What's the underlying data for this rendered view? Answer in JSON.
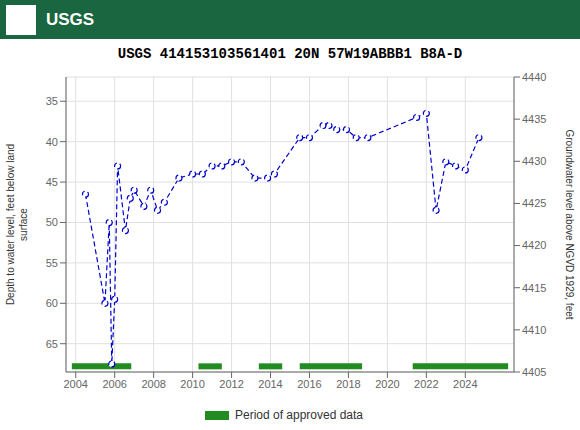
{
  "chart_data": {
    "type": "line",
    "title": "USGS 414153103561401 20N 57W19ABBB1 B8A-D",
    "annotations": [
      {
        "text": "USGS",
        "color": "#1a6640"
      }
    ],
    "x": [
      2004.5,
      2005.5,
      2005.72,
      2005.85,
      2006.0,
      2006.15,
      2006.55,
      2006.8,
      2007.0,
      2007.5,
      2007.85,
      2008.2,
      2008.55,
      2009.3,
      2010.0,
      2010.5,
      2011.0,
      2011.5,
      2012.0,
      2012.5,
      2013.2,
      2013.85,
      2014.2,
      2015.5,
      2016.0,
      2016.7,
      2017.0,
      2017.4,
      2017.9,
      2018.4,
      2019.0,
      2021.5,
      2022.0,
      2022.5,
      2023.0,
      2023.5,
      2024.0,
      2024.7
    ],
    "series": [
      {
        "values": [
          46.5,
          60.0,
          50.0,
          67.5,
          59.5,
          43.0,
          51.0,
          47.0,
          46.0,
          48.0,
          46.0,
          48.5,
          47.5,
          44.5,
          44.0,
          44.0,
          43.0,
          43.0,
          42.5,
          42.5,
          44.5,
          44.5,
          44.0,
          39.5,
          39.5,
          38.0,
          38.0,
          38.5,
          38.5,
          39.5,
          39.5,
          37.0,
          36.5,
          48.5,
          42.5,
          43.0,
          43.5,
          39.5
        ],
        "color": "#0000cc",
        "marker": "circle",
        "line_style": "dashed"
      },
      {
        "name": "Period of approved data",
        "type": "range_bar",
        "color": "#228B22",
        "y": 67.8,
        "ranges": [
          [
            2003.8,
            2006.85
          ],
          [
            2010.3,
            2011.5
          ],
          [
            2013.4,
            2014.6
          ],
          [
            2015.5,
            2018.7
          ],
          [
            2021.3,
            2026.2
          ]
        ]
      }
    ],
    "xlim": [
      2003.5,
      2026.5
    ],
    "xticks": [
      2004,
      2006,
      2008,
      2010,
      2012,
      2014,
      2016,
      2018,
      2020,
      2022,
      2024
    ],
    "ylim": [
      68.5,
      32.0
    ],
    "yticks": [
      35,
      40,
      45,
      50,
      55,
      60,
      65
    ],
    "y2lim": [
      4405,
      4440
    ],
    "y2ticks": [
      4405,
      4410,
      4415,
      4420,
      4425,
      4430,
      4435,
      4440
    ],
    "ylabel": "Depth to water level, feet below land\nsurface",
    "y2label": "Groundwater level above NGVD 1929, feet",
    "grid": true
  }
}
